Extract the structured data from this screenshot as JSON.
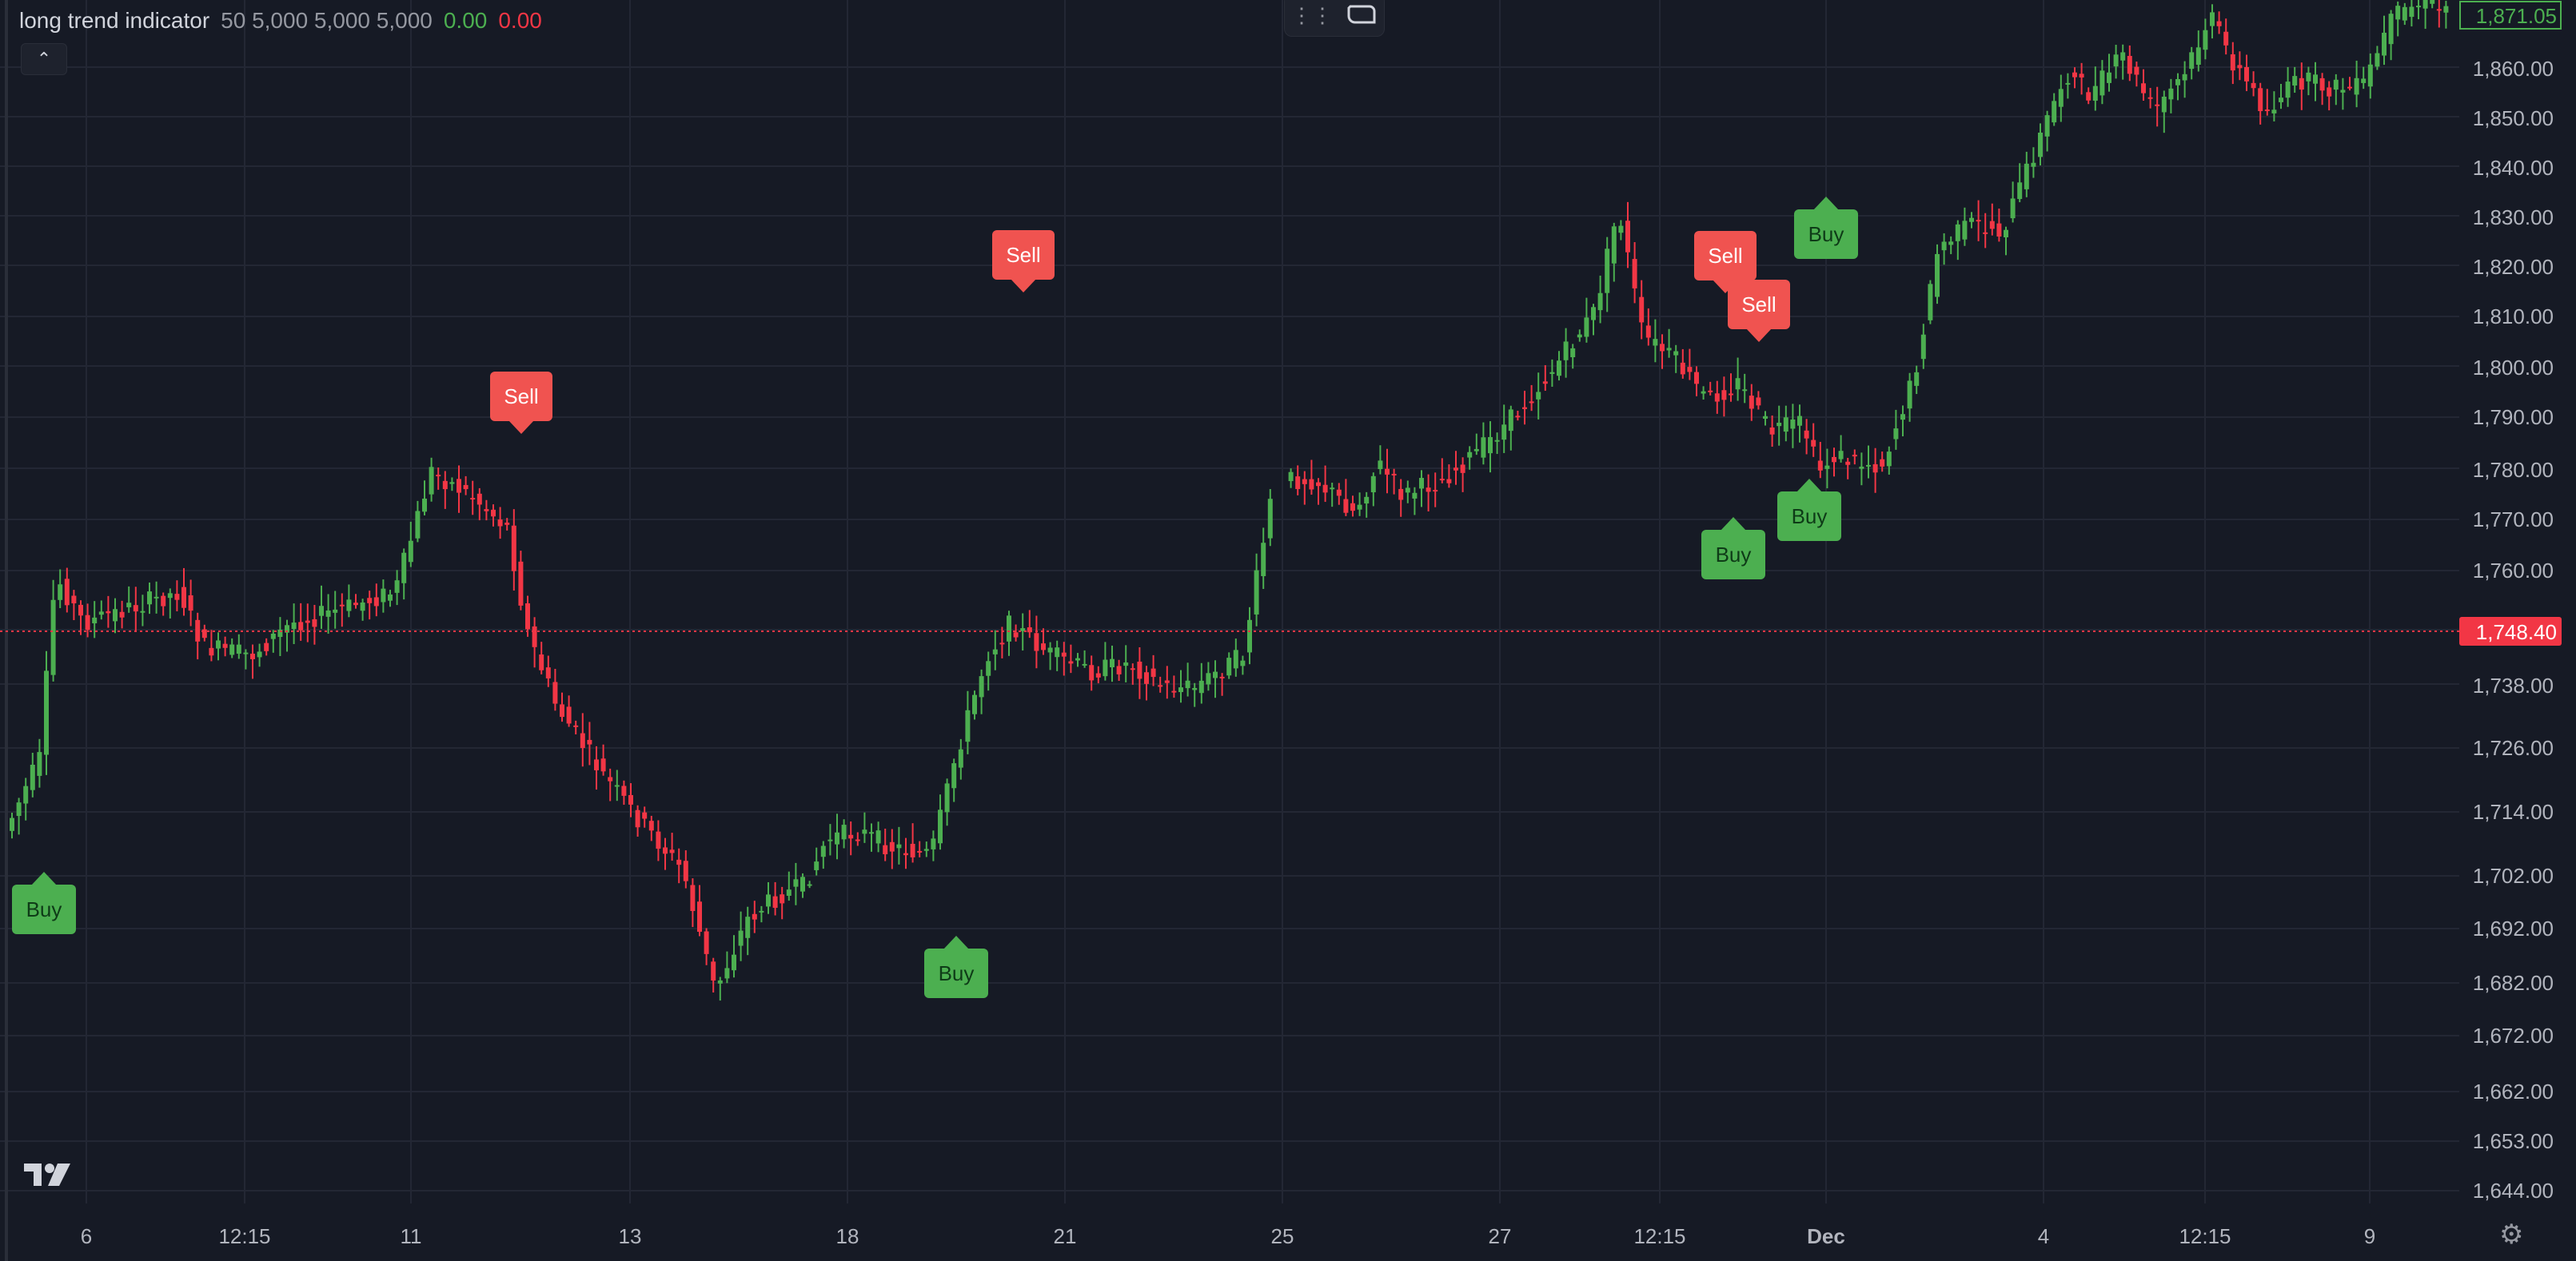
{
  "indicator": {
    "name": "long trend indicator",
    "params": "50 5,000 5,000 5,000",
    "value_1": "0.00",
    "value_2": "0.00"
  },
  "price_axis": {
    "labels": [
      "1,860.00",
      "1,850.00",
      "1,840.00",
      "1,830.00",
      "1,820.00",
      "1,810.00",
      "1,800.00",
      "1,790.00",
      "1,780.00",
      "1,770.00",
      "1,760.00",
      "1,738.00",
      "1,726.00",
      "1,714.00",
      "1,702.00",
      "1,692.00",
      "1,682.00",
      "1,672.00",
      "1,662.00",
      "1,653.00",
      "1,644.00"
    ],
    "current_price": "1,748.40",
    "last_price": "1,871.05"
  },
  "time_axis": {
    "labels": [
      "6",
      "12:15",
      "11",
      "13",
      "18",
      "21",
      "25",
      "27",
      "12:15",
      "Dec",
      "4",
      "12:15",
      "9"
    ]
  },
  "signals": [
    {
      "type": "buy",
      "label": "Buy"
    },
    {
      "type": "sell",
      "label": "Sell"
    },
    {
      "type": "buy",
      "label": "Buy"
    },
    {
      "type": "sell",
      "label": "Sell"
    },
    {
      "type": "sell",
      "label": "Sell"
    },
    {
      "type": "sell",
      "label": "Sell"
    },
    {
      "type": "buy",
      "label": "Buy"
    },
    {
      "type": "buy",
      "label": "Buy"
    },
    {
      "type": "buy",
      "label": "Buy"
    }
  ],
  "colors": {
    "background": "#161a25",
    "grid": "#232734",
    "bull": "#4caf50",
    "bear": "#f23645",
    "buy_label": "#4caf50",
    "sell_label": "#f05350",
    "axis_text": "#b2b5be",
    "price_line": "#f23645"
  },
  "icons": {
    "collapse": "chevron-up-icon",
    "logo": "tradingview-logo-icon",
    "settings": "gear-icon",
    "toolbar": [
      "drag-handle-icon",
      "comment-bubble-icon"
    ]
  }
}
